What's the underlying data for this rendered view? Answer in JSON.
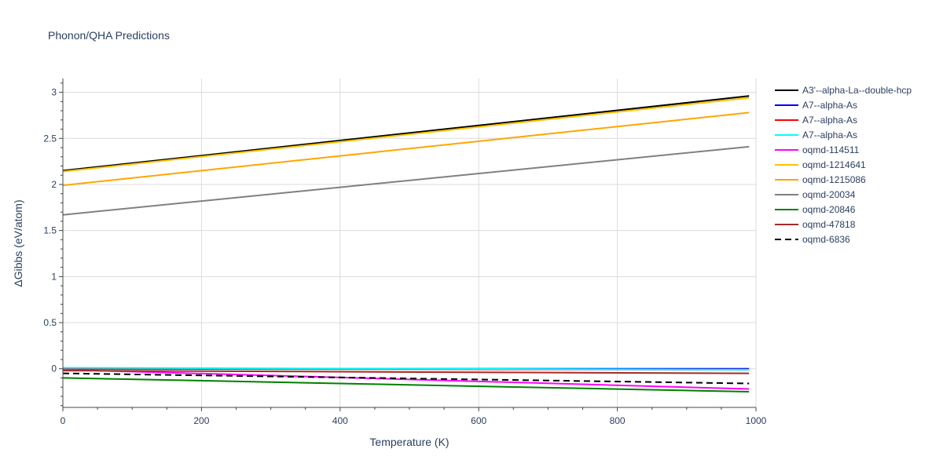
{
  "chart_data": {
    "type": "line",
    "title": "Phonon/QHA Predictions",
    "xlabel": "Temperature (K)",
    "ylabel": "ΔGibbs (eV/atom)",
    "xlim": [
      0,
      1000
    ],
    "ylim": [
      -0.42,
      3.15
    ],
    "xticks": [
      0,
      200,
      400,
      600,
      800,
      1000
    ],
    "xtick_labels": [
      "0",
      "200",
      "400",
      "600",
      "800",
      "1000"
    ],
    "yticks": [
      0,
      0.5,
      1,
      1.5,
      2,
      2.5,
      3
    ],
    "ytick_labels": [
      "0",
      "0.5",
      "1",
      "1.5",
      "2",
      "2.5",
      "3"
    ],
    "grid": true,
    "legend_position": "right",
    "series": [
      {
        "name": "A3'--alpha-La--double-hcp",
        "color": "#000000",
        "dash": "solid",
        "x": [
          0,
          990
        ],
        "y": [
          2.15,
          2.96
        ]
      },
      {
        "name": "A7--alpha-As",
        "color": "#0000ff",
        "dash": "solid",
        "x": [
          0,
          990
        ],
        "y": [
          0.0,
          0.0
        ]
      },
      {
        "name": "A7--alpha-As",
        "color": "#ff0000",
        "dash": "solid",
        "x": [
          0,
          990
        ],
        "y": [
          0.0,
          -0.01
        ]
      },
      {
        "name": "A7--alpha-As",
        "color": "#00ffff",
        "dash": "solid",
        "x": [
          0,
          990
        ],
        "y": [
          0.01,
          -0.01
        ]
      },
      {
        "name": "oqmd-114511",
        "color": "#ff00ff",
        "dash": "solid",
        "x": [
          0,
          990
        ],
        "y": [
          -0.01,
          -0.22
        ]
      },
      {
        "name": "oqmd-1214641",
        "color": "#ffc000",
        "dash": "solid",
        "x": [
          0,
          990
        ],
        "y": [
          2.14,
          2.94
        ]
      },
      {
        "name": "oqmd-1215086",
        "color": "#ffa500",
        "dash": "solid",
        "x": [
          0,
          990
        ],
        "y": [
          1.99,
          2.78
        ]
      },
      {
        "name": "oqmd-20034",
        "color": "#808080",
        "dash": "solid",
        "x": [
          0,
          990
        ],
        "y": [
          1.67,
          2.41
        ]
      },
      {
        "name": "oqmd-20846",
        "color": "#008000",
        "dash": "solid",
        "x": [
          0,
          990
        ],
        "y": [
          -0.1,
          -0.25
        ]
      },
      {
        "name": "oqmd-47818",
        "color": "#a52a2a",
        "dash": "solid",
        "x": [
          0,
          990
        ],
        "y": [
          -0.02,
          -0.05
        ]
      },
      {
        "name": "oqmd-6836",
        "color": "#000000",
        "dash": "dash",
        "x": [
          0,
          990
        ],
        "y": [
          -0.05,
          -0.16
        ]
      }
    ]
  }
}
